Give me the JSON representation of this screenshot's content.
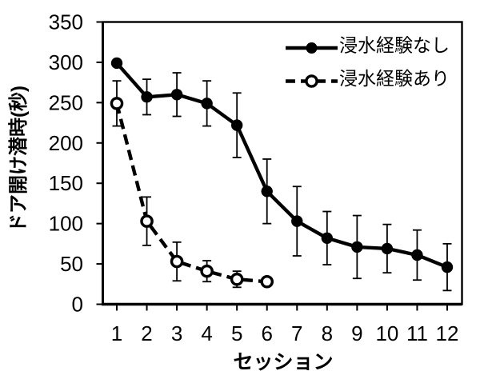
{
  "figure": {
    "background": "#ffffff",
    "foreground": "#000000"
  },
  "chart_data": {
    "type": "line",
    "title": "",
    "xlabel": "セッション",
    "ylabel": "ドア開け潜時(秒)",
    "x_categories": [
      "1",
      "2",
      "3",
      "4",
      "5",
      "6",
      "7",
      "8",
      "9",
      "10",
      "11",
      "12"
    ],
    "yticks": [
      0,
      50,
      100,
      150,
      200,
      250,
      300,
      350
    ],
    "ylim": [
      0,
      350
    ],
    "grid": false,
    "legend_position": "top-right-inside",
    "series": [
      {
        "name": "浸水経験なし",
        "line_style": "solid",
        "marker": "filled-circle",
        "color": "#000000",
        "x": [
          1,
          2,
          3,
          4,
          5,
          6,
          7,
          8,
          9,
          10,
          11,
          12
        ],
        "values": [
          299,
          257,
          260,
          249,
          222,
          140,
          103,
          82,
          71,
          69,
          61,
          46
        ],
        "errors": [
          0,
          22,
          27,
          28,
          40,
          40,
          43,
          33,
          39,
          30,
          31,
          29
        ]
      },
      {
        "name": "浸水経験あり",
        "line_style": "dashed",
        "marker": "open-circle",
        "color": "#000000",
        "x": [
          1,
          2,
          3,
          4,
          5,
          6
        ],
        "values": [
          249,
          103,
          53,
          41,
          31,
          28
        ],
        "errors": [
          28,
          30,
          24,
          13,
          10,
          0
        ]
      }
    ]
  }
}
